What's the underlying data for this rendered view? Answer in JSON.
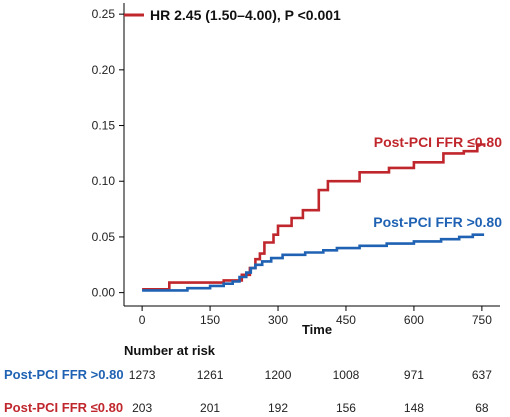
{
  "chart_data": {
    "type": "line",
    "xlabel": "Time",
    "ylabel": "",
    "xlim": [
      -40,
      790
    ],
    "ylim": [
      -0.012,
      0.26
    ],
    "x_ticks": [
      0,
      150,
      300,
      450,
      600,
      750
    ],
    "y_ticks": [
      "0.00",
      "0.05",
      "0.10",
      "0.15",
      "0.20",
      "0.25"
    ],
    "y_tick_values": [
      0.0,
      0.05,
      0.1,
      0.15,
      0.2,
      0.25
    ],
    "grid": false,
    "legend": {
      "placement": "top-left",
      "text": "HR 2.45 (1.50–4.00), P <0.001"
    },
    "series": [
      {
        "name": "Post-PCI FFR ≤0.80",
        "color": "#c0272d",
        "label": "Post-PCI FFR ≤0.80",
        "steps": [
          [
            0,
            0.003
          ],
          [
            60,
            0.003
          ],
          [
            60,
            0.009
          ],
          [
            150,
            0.009
          ],
          [
            180,
            0.009
          ],
          [
            180,
            0.011
          ],
          [
            220,
            0.011
          ],
          [
            220,
            0.016
          ],
          [
            238,
            0.016
          ],
          [
            238,
            0.022
          ],
          [
            250,
            0.022
          ],
          [
            250,
            0.03
          ],
          [
            260,
            0.03
          ],
          [
            260,
            0.035
          ],
          [
            270,
            0.035
          ],
          [
            270,
            0.045
          ],
          [
            290,
            0.045
          ],
          [
            290,
            0.052
          ],
          [
            300,
            0.052
          ],
          [
            300,
            0.06
          ],
          [
            330,
            0.06
          ],
          [
            330,
            0.067
          ],
          [
            355,
            0.067
          ],
          [
            355,
            0.074
          ],
          [
            390,
            0.074
          ],
          [
            390,
            0.092
          ],
          [
            410,
            0.092
          ],
          [
            410,
            0.1
          ],
          [
            480,
            0.1
          ],
          [
            480,
            0.108
          ],
          [
            545,
            0.108
          ],
          [
            545,
            0.112
          ],
          [
            600,
            0.112
          ],
          [
            600,
            0.117
          ],
          [
            665,
            0.117
          ],
          [
            665,
            0.125
          ],
          [
            710,
            0.125
          ],
          [
            710,
            0.127
          ],
          [
            740,
            0.127
          ],
          [
            740,
            0.133
          ],
          [
            758,
            0.133
          ]
        ]
      },
      {
        "name": "Post-PCI FFR >0.80",
        "color": "#1f62b3",
        "label": "Post-PCI FFR >0.80",
        "steps": [
          [
            0,
            0.002
          ],
          [
            100,
            0.002
          ],
          [
            100,
            0.004
          ],
          [
            150,
            0.004
          ],
          [
            150,
            0.006
          ],
          [
            180,
            0.006
          ],
          [
            180,
            0.008
          ],
          [
            200,
            0.008
          ],
          [
            200,
            0.01
          ],
          [
            215,
            0.01
          ],
          [
            215,
            0.014
          ],
          [
            230,
            0.014
          ],
          [
            230,
            0.018
          ],
          [
            240,
            0.018
          ],
          [
            240,
            0.022
          ],
          [
            250,
            0.022
          ],
          [
            250,
            0.025
          ],
          [
            265,
            0.025
          ],
          [
            265,
            0.028
          ],
          [
            285,
            0.028
          ],
          [
            285,
            0.031
          ],
          [
            310,
            0.031
          ],
          [
            310,
            0.034
          ],
          [
            360,
            0.034
          ],
          [
            360,
            0.036
          ],
          [
            400,
            0.036
          ],
          [
            400,
            0.038
          ],
          [
            430,
            0.038
          ],
          [
            430,
            0.04
          ],
          [
            480,
            0.04
          ],
          [
            480,
            0.042
          ],
          [
            540,
            0.042
          ],
          [
            540,
            0.044
          ],
          [
            600,
            0.044
          ],
          [
            600,
            0.046
          ],
          [
            660,
            0.046
          ],
          [
            660,
            0.048
          ],
          [
            700,
            0.048
          ],
          [
            700,
            0.05
          ],
          [
            730,
            0.05
          ],
          [
            730,
            0.052
          ],
          [
            755,
            0.052
          ]
        ]
      }
    ]
  },
  "risk_table": {
    "title": "Number at risk",
    "rows": [
      {
        "label": "Post-PCI FFR >0.80",
        "color": "#1f62b3",
        "values": [
          "1273",
          "1261",
          "1200",
          "1008",
          "971",
          "637"
        ]
      },
      {
        "label": "Post-PCI FFR ≤0.80",
        "color": "#c0272d",
        "values": [
          "203",
          "201",
          "192",
          "156",
          "148",
          "68"
        ]
      }
    ]
  }
}
